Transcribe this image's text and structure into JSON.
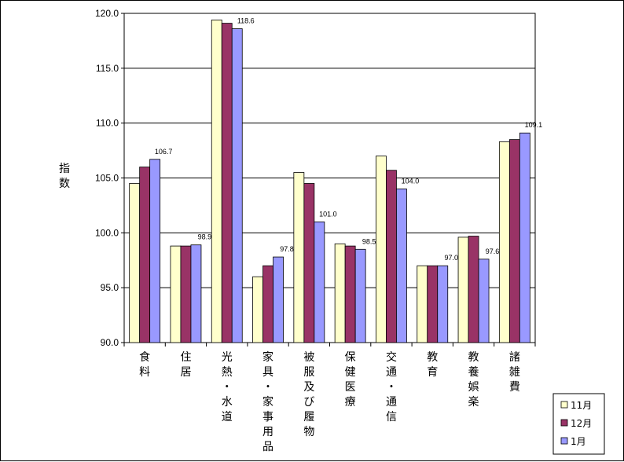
{
  "chart_data": {
    "type": "bar",
    "ylabel": "指数",
    "ylim": [
      90.0,
      120.0
    ],
    "yticks": [
      "90.0",
      "95.0",
      "100.0",
      "105.0",
      "110.0",
      "115.0",
      "120.0"
    ],
    "grid": true,
    "legend_position": "bottom-right",
    "categories": [
      "食料",
      "住居",
      "光熱・水道",
      "家具・家事用品",
      "被服及び履物",
      "保健医療",
      "交通・通信",
      "教育",
      "教養娯楽",
      "諸雑費"
    ],
    "series": [
      {
        "name": "11月",
        "color": "#ffffcc",
        "values": [
          104.5,
          98.8,
          119.4,
          96.0,
          105.5,
          99.0,
          107.0,
          97.0,
          99.6,
          108.3
        ]
      },
      {
        "name": "12月",
        "color": "#993366",
        "values": [
          106.0,
          98.8,
          119.1,
          97.0,
          104.5,
          98.8,
          105.7,
          97.0,
          99.7,
          108.5
        ]
      },
      {
        "name": "1月",
        "color": "#9999ff",
        "values": [
          106.7,
          98.9,
          118.6,
          97.8,
          101.0,
          98.5,
          104.0,
          97.0,
          97.6,
          109.1
        ]
      }
    ],
    "data_labels": [
      "106.7",
      "98.9",
      "118.6",
      "97.8",
      "101.0",
      "98.5",
      "104.0",
      "97.0",
      "97.6",
      "109.1"
    ]
  }
}
